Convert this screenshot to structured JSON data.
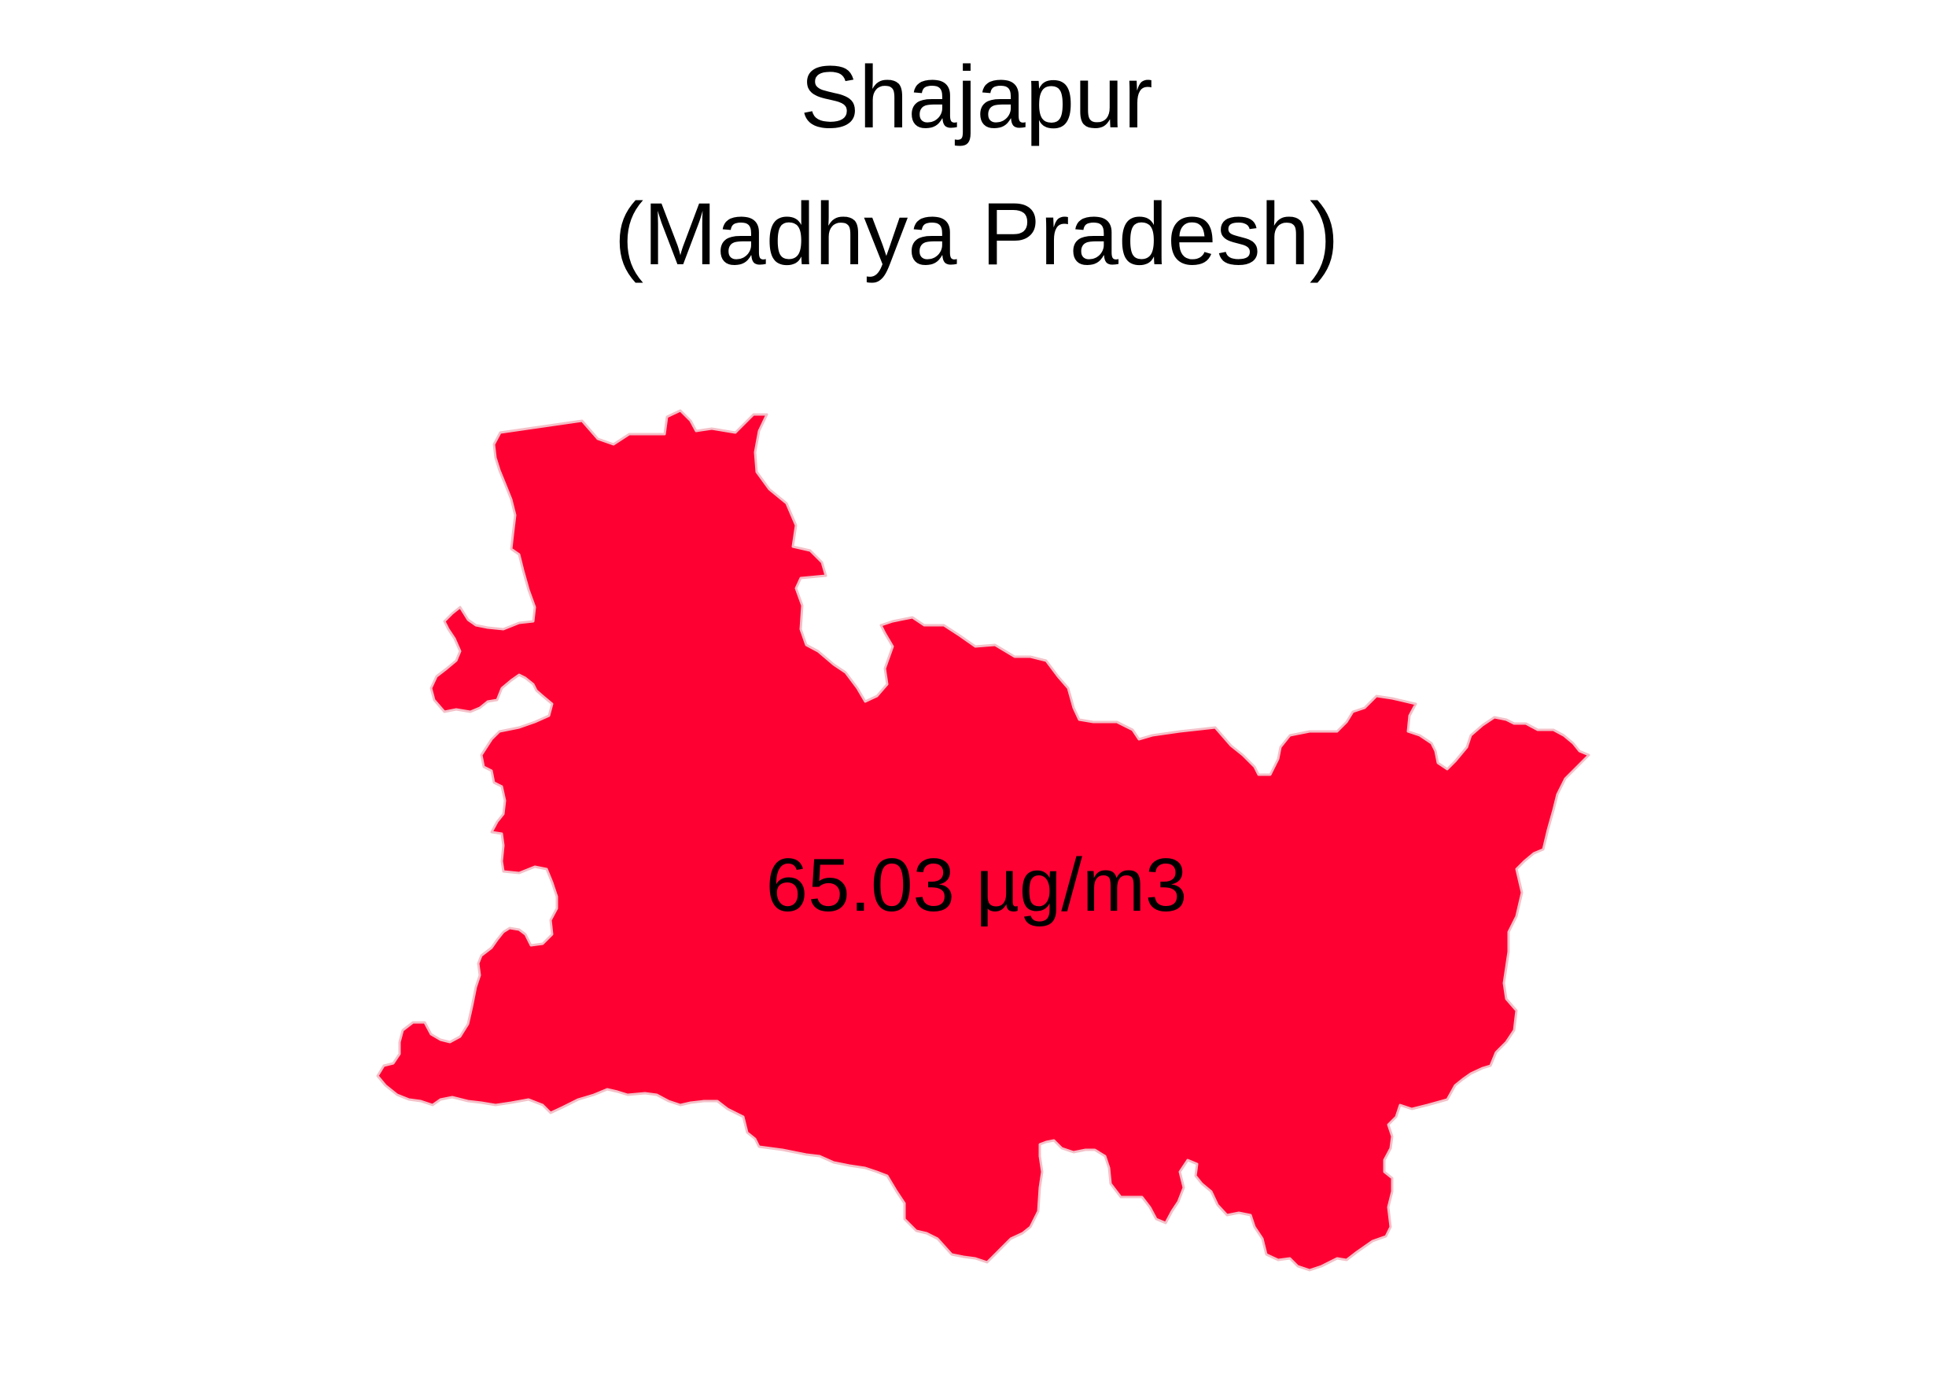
{
  "title": {
    "district": "Shajapur",
    "state": "(Madhya Pradesh)"
  },
  "map": {
    "region_name": "Shajapur",
    "value_label": "65.03 µg/m3",
    "value": 65.03,
    "unit": "µg/m3",
    "fill_color": "#ff0033",
    "stroke_color": "#f4c0c8",
    "background": "#ffffff"
  }
}
